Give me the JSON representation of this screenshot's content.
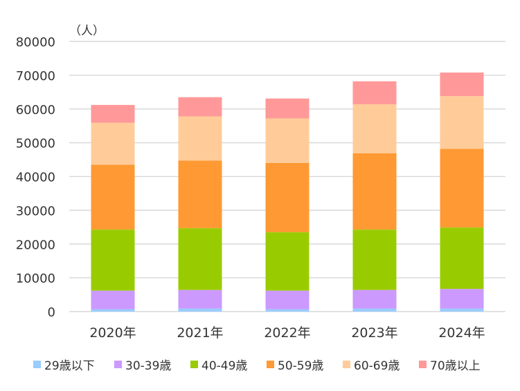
{
  "chart_data": {
    "type": "bar",
    "stacked": true,
    "unit_label": "（人）",
    "categories": [
      "2020年",
      "2021年",
      "2022年",
      "2023年",
      "2024年"
    ],
    "ylim": [
      0,
      80000
    ],
    "yticks": [
      "0",
      "10000",
      "20000",
      "30000",
      "40000",
      "50000",
      "60000",
      "70000",
      "80000"
    ],
    "grid": true,
    "legend_position": "bottom",
    "series": [
      {
        "name": "29歳以下",
        "color": "#99ccff",
        "values": [
          700,
          900,
          700,
          900,
          900
        ]
      },
      {
        "name": "30-39歳",
        "color": "#cc99ff",
        "values": [
          5500,
          5500,
          5500,
          5500,
          5800
        ]
      },
      {
        "name": "40-49歳",
        "color": "#99cc00",
        "values": [
          18100,
          18300,
          17300,
          17900,
          18200
        ]
      },
      {
        "name": "50-59歳",
        "color": "#ff9933",
        "values": [
          19200,
          20000,
          20500,
          22600,
          23300
        ]
      },
      {
        "name": "60-69歳",
        "color": "#ffcc99",
        "values": [
          12400,
          13100,
          13200,
          14500,
          15600
        ]
      },
      {
        "name": "70歳以上",
        "color": "#ff9999",
        "values": [
          5300,
          5700,
          5900,
          6800,
          7000
        ]
      }
    ]
  }
}
